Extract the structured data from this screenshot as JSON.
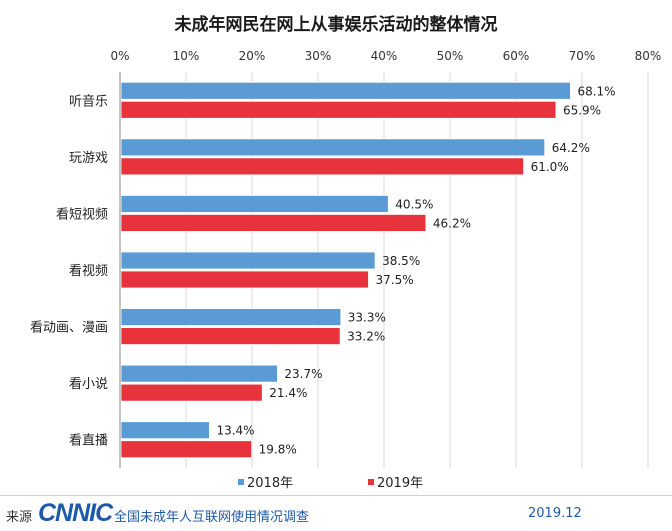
{
  "chart_data": {
    "type": "bar",
    "orientation": "horizontal",
    "title": "未成年网民在网上从事娱乐活动的整体情况",
    "categories": [
      "听音乐",
      "玩游戏",
      "看短视频",
      "看视频",
      "看动画、漫画",
      "看小说",
      "看直播"
    ],
    "series": [
      {
        "name": "2018年",
        "color": "#5b9bd5",
        "values": [
          68.1,
          64.2,
          40.5,
          38.5,
          33.3,
          23.7,
          13.4
        ]
      },
      {
        "name": "2019年",
        "color": "#e8323c",
        "values": [
          65.9,
          61.0,
          46.2,
          37.5,
          33.2,
          21.4,
          19.8
        ]
      }
    ],
    "xlim": [
      0,
      80
    ],
    "xticks": [
      "0%",
      "10%",
      "20%",
      "30%",
      "40%",
      "50%",
      "60%",
      "70%",
      "80%"
    ],
    "value_suffix": "%",
    "grid": "vertical",
    "legend": "bottom"
  },
  "footer": {
    "source_label": "来源",
    "logo_text": "CNNIC",
    "org_text": "全国未成年人互联网使用情况调查",
    "date": "2019.12"
  }
}
